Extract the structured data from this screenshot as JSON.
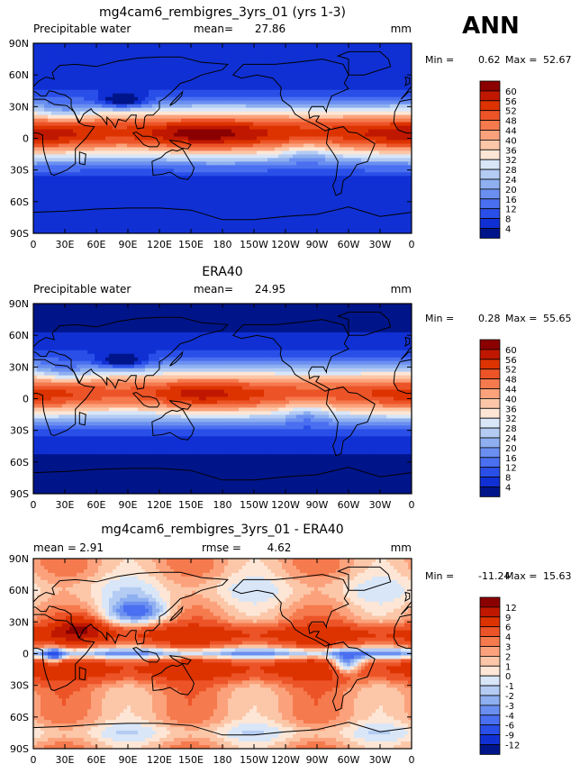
{
  "season": "ANN",
  "panels": [
    {
      "title": "mg4cam6_rembigres_3yrs_01 (yrs 1-3)",
      "left_label": "Precipitable water",
      "center_label": "mean=",
      "center_value": "27.86",
      "units": "mm",
      "min_label": "Min =",
      "min_value": "0.62",
      "max_label": "Max =",
      "max_value": "52.67",
      "colorbar_labels": [
        "60",
        "56",
        "52",
        "48",
        "44",
        "40",
        "36",
        "32",
        "28",
        "24",
        "20",
        "16",
        "12",
        "8",
        "4"
      ],
      "colorbar_colors": [
        "#8b0000",
        "#c01800",
        "#dd3300",
        "#ec5428",
        "#f57a4e",
        "#fba27c",
        "#fcc7a8",
        "#fde6d6",
        "#d8e6f8",
        "#b4ccf3",
        "#8eaff0",
        "#6a8ff0",
        "#4a6ff0",
        "#2a4fe8",
        "#1030d4",
        "#00158a"
      ],
      "field": "pw_model"
    },
    {
      "title": "ERA40",
      "left_label": "Precipitable water",
      "center_label": "mean=",
      "center_value": "24.95",
      "units": "mm",
      "min_label": "Min =",
      "min_value": "0.28",
      "max_label": "Max =",
      "max_value": "55.65",
      "colorbar_labels": [
        "60",
        "56",
        "52",
        "48",
        "44",
        "40",
        "36",
        "32",
        "28",
        "24",
        "20",
        "16",
        "12",
        "8",
        "4"
      ],
      "colorbar_colors": [
        "#8b0000",
        "#c01800",
        "#dd3300",
        "#ec5428",
        "#f57a4e",
        "#fba27c",
        "#fcc7a8",
        "#fde6d6",
        "#d8e6f8",
        "#b4ccf3",
        "#8eaff0",
        "#6a8ff0",
        "#4a6ff0",
        "#2a4fe8",
        "#1030d4",
        "#00158a"
      ],
      "field": "pw_obs"
    },
    {
      "title": "mg4cam6_rembigres_3yrs_01 - ERA40",
      "left_label": "mean =",
      "left_value": "2.91",
      "center_label": "rmse =",
      "center_value": "4.62",
      "units": "mm",
      "min_label": "Min =",
      "min_value": "-11.24",
      "max_label": "Max =",
      "max_value": "15.63",
      "colorbar_labels": [
        "12",
        "9",
        "6",
        "4",
        "3",
        "2",
        "1",
        "0",
        "-1",
        "-2",
        "-3",
        "-4",
        "-6",
        "-9",
        "-12"
      ],
      "colorbar_colors": [
        "#8b0000",
        "#c01800",
        "#dd3300",
        "#ec5428",
        "#f57a4e",
        "#fba27c",
        "#fcc7a8",
        "#fde6d6",
        "#d8e6f8",
        "#b4ccf3",
        "#8eaff0",
        "#6a8ff0",
        "#4a6ff0",
        "#2a4fe8",
        "#1030d4",
        "#00158a"
      ],
      "field": "pw_diff"
    }
  ],
  "lat_labels": [
    "90N",
    "60N",
    "30N",
    "0",
    "30S",
    "60S",
    "90S"
  ],
  "lon_labels": [
    "0",
    "30E",
    "60E",
    "90E",
    "120E",
    "150E",
    "180",
    "150W",
    "120W",
    "90W",
    "60W",
    "30W",
    "0"
  ]
}
